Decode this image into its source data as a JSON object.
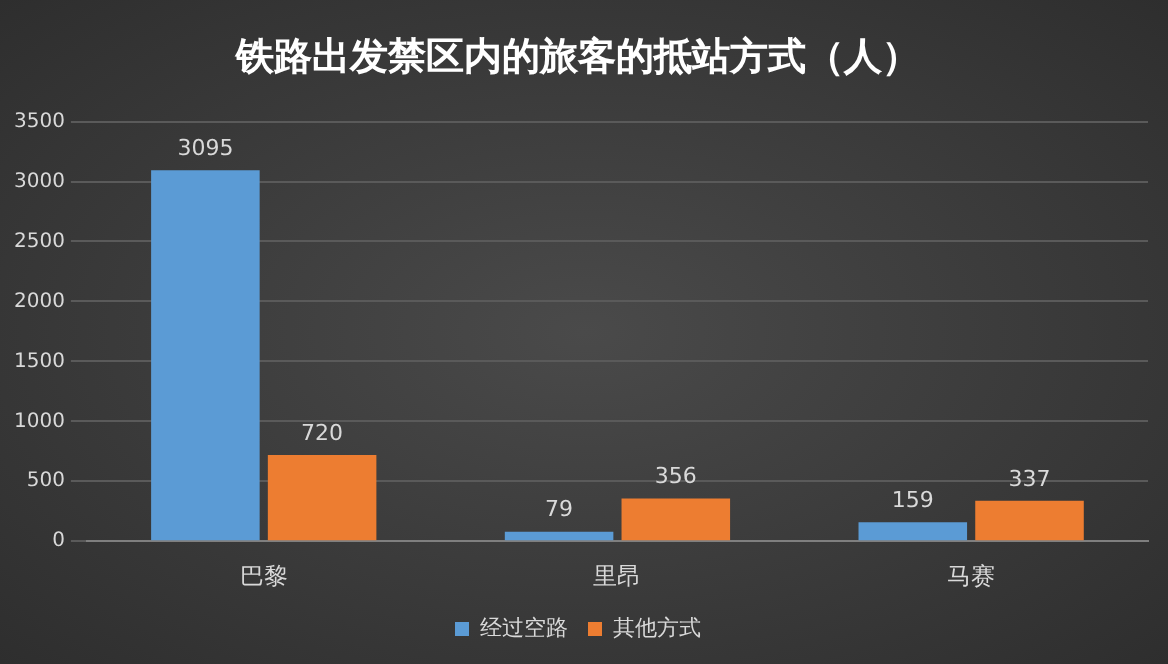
{
  "chart_data": {
    "type": "bar",
    "title": "铁路出发禁区内的旅客的抵站方式（人）",
    "categories": [
      "巴黎",
      "里昂",
      "马赛"
    ],
    "series": [
      {
        "name": "经过空路",
        "color": "#5b9bd5",
        "values": [
          3095,
          79,
          159
        ]
      },
      {
        "name": "其他方式",
        "color": "#ed7d31",
        "values": [
          720,
          356,
          337
        ]
      }
    ],
    "ylim": [
      0,
      3500
    ],
    "yticks": [
      0,
      500,
      1000,
      1500,
      2000,
      2500,
      3000,
      3500
    ],
    "grid": "y",
    "legend": "bottom",
    "data_labels": true
  }
}
